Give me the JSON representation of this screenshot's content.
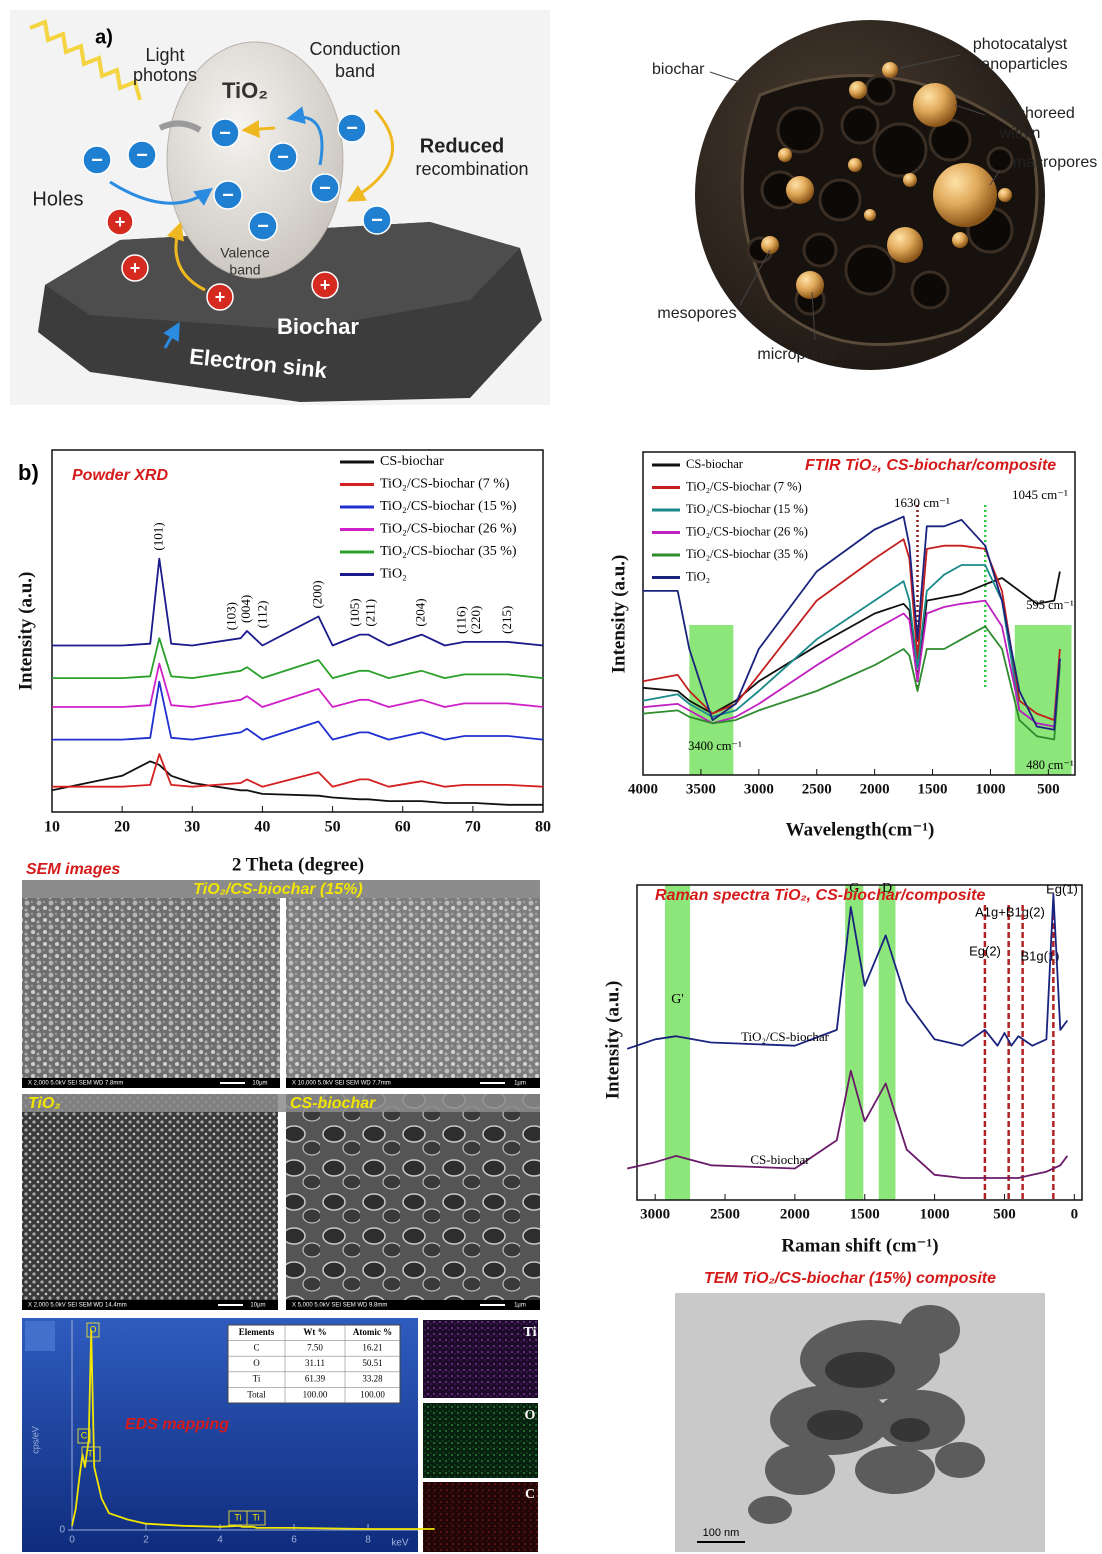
{
  "panel_a": {
    "label": "a)",
    "mechanism": {
      "light": [
        "Light",
        "photons"
      ],
      "material": "TiO₂",
      "conduction_band": [
        "Conduction",
        "band"
      ],
      "reduced_recombination": [
        "Reduced",
        "recombination"
      ],
      "holes": "Holes",
      "valence_band": [
        "Valence",
        "band"
      ],
      "biochar": "Biochar",
      "electron_sink": "Electron sink",
      "electron_symbol": "−",
      "hole_symbol": "+"
    },
    "structure": {
      "biochar": "biochar",
      "nanoparticles": [
        "photocatalyst",
        "nanoparticles"
      ],
      "anchored": [
        "anchoreed",
        "within"
      ],
      "macropores": "macropores",
      "mesopores": "mesopores",
      "micropores": "micropores"
    }
  },
  "panel_b_label": "b)",
  "sem": {
    "title": "SEM images",
    "composite_label": "TiO₂/CS-biochar (15%)",
    "tio2_label": "TiO₂",
    "biochar_label": "CS-biochar",
    "info_bars": [
      [
        "X 2,000  5.0kV  SEI  SEM  WD 7.8mm",
        "10µm"
      ],
      [
        "X 10,000  5.0kV  SEI  SEM  WD 7.7mm",
        "1µm"
      ],
      [
        "X 2,000  5.0kV  SEI  SEM  WD 14.4mm",
        "10µm"
      ],
      [
        "X 5,000  5.0kV  SEI  SEM  WD 9.8mm",
        "1µm"
      ]
    ]
  },
  "eds_table": {
    "header": [
      "Elements",
      "Wt %",
      "Atomic %"
    ],
    "rows": [
      [
        "C",
        "7.50",
        "16.21"
      ],
      [
        "O",
        "31.11",
        "50.51"
      ],
      [
        "Ti",
        "61.39",
        "33.28"
      ],
      [
        "Total",
        "100.00",
        "100.00"
      ]
    ]
  },
  "eds_maps": [
    "Ti",
    "O",
    "C"
  ],
  "tem": {
    "title": "TEM TiO₂/CS-biochar (15%) composite",
    "scale_bar": "100 nm"
  },
  "chart_data": [
    {
      "type": "line",
      "title": "Powder XRD",
      "x_label": "2 Theta (degree)",
      "y_label": "Intensity (a.u.)",
      "x": [
        10,
        20,
        24,
        25.3,
        27,
        30,
        36.9,
        37.8,
        40,
        48,
        50,
        53.9,
        55.1,
        58,
        62.7,
        66,
        68.8,
        70.3,
        75,
        80
      ],
      "xlim": [
        10,
        80
      ],
      "xticks": [
        10,
        20,
        30,
        40,
        50,
        60,
        70,
        80
      ],
      "ylim": [
        0,
        100
      ],
      "legend": "upper right",
      "series": [
        {
          "name": "CS-biochar",
          "color": "#111111",
          "values": [
            6,
            10,
            14,
            13,
            10,
            8,
            6,
            6,
            5,
            4.5,
            4,
            3.5,
            3.5,
            3,
            3,
            2.5,
            2.5,
            2.5,
            2,
            2
          ]
        },
        {
          "name": "TiO₂/CS-biochar (7 %)",
          "color": "#d42020",
          "values": [
            7,
            7,
            7.5,
            16,
            7.5,
            7,
            8,
            9,
            7,
            11,
            7,
            9,
            9,
            7,
            8.5,
            7,
            7.5,
            7.5,
            7.5,
            7
          ]
        },
        {
          "name": "TiO₂/CS-biochar (15 %)",
          "color": "#1f2fd0",
          "values": [
            20,
            20,
            20.5,
            36,
            20.5,
            20,
            22,
            23,
            20,
            25,
            20,
            22,
            22,
            20,
            22,
            20,
            21,
            21,
            21,
            20
          ]
        },
        {
          "name": "TiO₂/CS-biochar (26 %)",
          "color": "#d020c8",
          "values": [
            29,
            29,
            29.5,
            41,
            29.5,
            29,
            31,
            32,
            29,
            34,
            29,
            31,
            31,
            29,
            31,
            29,
            30,
            30,
            30,
            29
          ]
        },
        {
          "name": "TiO₂/CS-biochar (35 %)",
          "color": "#2aa02a",
          "values": [
            37,
            37,
            37.5,
            48,
            37.5,
            37,
            39,
            40,
            37,
            42,
            37,
            39,
            39,
            37,
            39,
            37,
            38,
            38,
            38,
            37
          ]
        },
        {
          "name": "TiO₂",
          "color": "#1a1a8c",
          "values": [
            46,
            46,
            46.5,
            70,
            46.5,
            46,
            48,
            50,
            46,
            54,
            46,
            49,
            49,
            46,
            49,
            46,
            47,
            47,
            47,
            46
          ]
        }
      ],
      "peak_labels": [
        {
          "text": "(101)",
          "x": 25.3
        },
        {
          "text": "(103)",
          "x": 36.9
        },
        {
          "text": "(004)",
          "x": 37.8
        },
        {
          "text": "(112)",
          "x": 38.6
        },
        {
          "text": "(200)",
          "x": 48
        },
        {
          "text": "(105)",
          "x": 53.9
        },
        {
          "text": "(211)",
          "x": 55.1
        },
        {
          "text": "(204)",
          "x": 62.7
        },
        {
          "text": "(116)",
          "x": 68.8
        },
        {
          "text": "(220)",
          "x": 70.3
        },
        {
          "text": "(215)",
          "x": 75
        }
      ]
    },
    {
      "type": "line",
      "title": "FTIR TiO₂, CS-biochar/composite",
      "x_label": "Wavelength(cm⁻¹)",
      "y_label": "Intensity (a.u.)",
      "x": [
        4000,
        3700,
        3600,
        3400,
        3200,
        3000,
        2500,
        2000,
        1750,
        1700,
        1630,
        1550,
        1400,
        1250,
        1045,
        900,
        750,
        600,
        450,
        400
      ],
      "xlim": [
        4000,
        270
      ],
      "xticks": [
        4000,
        3500,
        3000,
        2500,
        2000,
        1500,
        1000,
        500
      ],
      "ylim": [
        0,
        100
      ],
      "legend": "upper left",
      "series": [
        {
          "name": "CS-biochar",
          "color": "#111111",
          "values": [
            27,
            26,
            23,
            19,
            23,
            29,
            40,
            50,
            53,
            51,
            29,
            54,
            55,
            56,
            59,
            61,
            57,
            53,
            54,
            63
          ]
        },
        {
          "name": "TiO₂/CS-biochar (7 %)",
          "color": "#c41e1e",
          "values": [
            29,
            31,
            26,
            19,
            22,
            31,
            54,
            67,
            73,
            67,
            36,
            70,
            71,
            71,
            70,
            57,
            23,
            19,
            17,
            39
          ]
        },
        {
          "name": "TiO₂/CS-biochar (15 %)",
          "color": "#1a8a8a",
          "values": [
            23,
            25,
            22,
            18,
            20,
            26,
            42,
            54,
            60,
            54,
            33,
            57,
            62,
            65,
            65,
            54,
            20,
            16,
            15,
            36
          ]
        },
        {
          "name": "TiO₂/CS-biochar (26 %)",
          "color": "#c020c0",
          "values": [
            21,
            22,
            20,
            16,
            18,
            22,
            34,
            45,
            50,
            48,
            29,
            50,
            52,
            53,
            54,
            46,
            20,
            16,
            15,
            36
          ]
        },
        {
          "name": "TiO₂/CS-biochar (35 %)",
          "color": "#2e8b2e",
          "values": [
            19,
            20,
            18,
            16,
            17,
            20,
            26,
            34,
            39,
            37,
            26,
            39,
            39,
            42,
            46,
            39,
            17,
            12,
            11,
            34
          ]
        },
        {
          "name": "TiO₂",
          "color": "#1a237e",
          "values": [
            57,
            57,
            39,
            17,
            22,
            39,
            63,
            76,
            80,
            71,
            42,
            77,
            77,
            79,
            71,
            54,
            26,
            15,
            14,
            36
          ]
        }
      ],
      "bands": [
        [
          3600,
          3220
        ],
        [
          790,
          300
        ]
      ],
      "reference_lines": [
        {
          "x": 1630,
          "color": "#8b1a1a",
          "label": "1630 cm⁻¹"
        },
        {
          "x": 1045,
          "color": "#2ecc40",
          "label": "1045 cm⁻¹"
        }
      ],
      "annotations": [
        "595 cm⁻¹",
        "3400 cm⁻¹",
        "480 cm⁻¹"
      ]
    },
    {
      "type": "line",
      "title": "Raman spectra TiO₂, CS-biochar/composite",
      "x_label": "Raman shift (cm⁻¹)",
      "y_label": "Intensity (a.u.)",
      "x": [
        3200,
        3000,
        2850,
        2600,
        2000,
        1700,
        1600,
        1500,
        1350,
        1200,
        1000,
        800,
        640,
        550,
        500,
        450,
        400,
        300,
        200,
        150,
        100,
        50
      ],
      "xlim": [
        3130,
        -55
      ],
      "xticks": [
        3000,
        2500,
        2000,
        1500,
        1000,
        500,
        0
      ],
      "ylim": [
        0,
        100
      ],
      "series": [
        {
          "name": "TiO₂/CS-biochar",
          "color": "#1a237e",
          "values": [
            48,
            51,
            52,
            50,
            49,
            54,
            93,
            68,
            84,
            63,
            51,
            49,
            54,
            49,
            53,
            49,
            52,
            49,
            51,
            97,
            54,
            57
          ]
        },
        {
          "name": "CS-biochar",
          "color": "#6a1b6a",
          "values": [
            10,
            12,
            14,
            11,
            10,
            19,
            41,
            25,
            37,
            16,
            8,
            7,
            7,
            7,
            7,
            7,
            7,
            8,
            9,
            10,
            11,
            14
          ]
        }
      ],
      "bands": [
        {
          "label": "G'",
          "range": [
            2930,
            2750
          ]
        },
        {
          "label": "G",
          "range": [
            1640,
            1510
          ]
        },
        {
          "label": "D",
          "range": [
            1400,
            1280
          ]
        }
      ],
      "reference_lines": [
        {
          "x": 640,
          "color": "#b22222",
          "label": "Eg(2)"
        },
        {
          "x": 470,
          "color": "#b22222",
          "label": "A1g+B1g(2)"
        },
        {
          "x": 370,
          "color": "#b22222",
          "label": "B1g(1)"
        },
        {
          "x": 150,
          "color": "#b22222",
          "label": "Eg(1)"
        }
      ]
    },
    {
      "type": "line",
      "title": "EDS mapping",
      "x_label": "keV",
      "y_label": "cps/eV",
      "color": "#f2e600",
      "x": [
        0,
        0.1,
        0.2,
        0.28,
        0.35,
        0.45,
        0.52,
        0.6,
        0.8,
        1,
        1.5,
        2,
        3,
        4,
        4.5,
        4.6,
        4.9,
        5,
        6,
        8,
        9.8
      ],
      "values": [
        2,
        10,
        25,
        36,
        30,
        43,
        95,
        30,
        15,
        8,
        5,
        3,
        2,
        1.5,
        2,
        1.5,
        1.5,
        1,
        1,
        0.5,
        0.5
      ],
      "xlim": [
        0,
        9.35
      ],
      "xticks": [
        0,
        2,
        4,
        6,
        8
      ],
      "ylim": [
        0,
        100
      ],
      "yticks": [
        0
      ],
      "peak_labels": [
        {
          "text": "O",
          "x": 0.525
        },
        {
          "text": "C",
          "x": 0.277
        },
        {
          "text": "Ti",
          "x": 0.452
        },
        {
          "text": "Ti",
          "x": 4.51
        },
        {
          "text": "Ti",
          "x": 4.93
        }
      ]
    }
  ]
}
